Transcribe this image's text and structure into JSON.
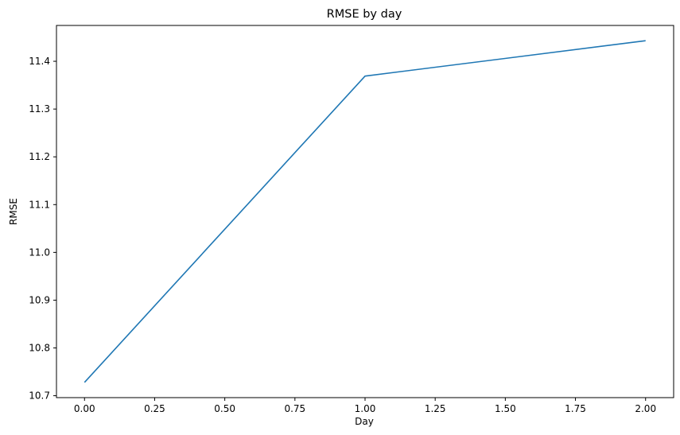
{
  "chart_data": {
    "type": "line",
    "title": "RMSE by day",
    "xlabel": "Day",
    "ylabel": "RMSE",
    "x": [
      0.0,
      1.0,
      2.0
    ],
    "series": [
      {
        "values": [
          10.728,
          11.369,
          11.443
        ],
        "color": "#1f77b4"
      }
    ],
    "xlim": [
      -0.1,
      2.1
    ],
    "ylim": [
      10.696,
      11.475
    ],
    "xticks": [
      "0.00",
      "0.25",
      "0.50",
      "0.75",
      "1.00",
      "1.25",
      "1.50",
      "1.75",
      "2.00"
    ],
    "xtick_values": [
      0,
      0.25,
      0.5,
      0.75,
      1.0,
      1.25,
      1.5,
      1.75,
      2.0
    ],
    "yticks": [
      "10.7",
      "10.8",
      "10.9",
      "11.0",
      "11.1",
      "11.2",
      "11.3",
      "11.4"
    ],
    "ytick_values": [
      10.7,
      10.8,
      10.9,
      11.0,
      11.1,
      11.2,
      11.3,
      11.4
    ],
    "grid": false,
    "legend": "none"
  }
}
